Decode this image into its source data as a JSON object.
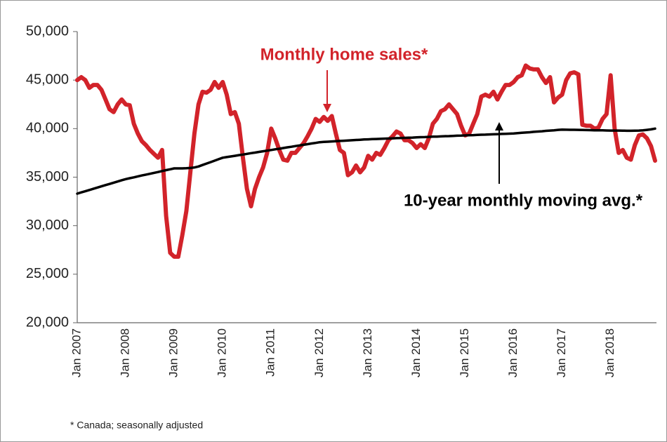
{
  "chart_data": {
    "type": "line",
    "categories": [
      "Jan 2007",
      null,
      null,
      null,
      null,
      null,
      null,
      null,
      null,
      null,
      null,
      null,
      "Jan 2008",
      null,
      null,
      null,
      null,
      null,
      null,
      null,
      null,
      null,
      null,
      null,
      "Jan 2009",
      null,
      null,
      null,
      null,
      null,
      null,
      null,
      null,
      null,
      null,
      null,
      "Jan 2010",
      null,
      null,
      null,
      null,
      null,
      null,
      null,
      null,
      null,
      null,
      null,
      "Jan 2011",
      null,
      null,
      null,
      null,
      null,
      null,
      null,
      null,
      null,
      null,
      null,
      "Jan 2012",
      null,
      null,
      null,
      null,
      null,
      null,
      null,
      null,
      null,
      null,
      null,
      "Jan 2013",
      null,
      null,
      null,
      null,
      null,
      null,
      null,
      null,
      null,
      null,
      null,
      "Jan 2014",
      null,
      null,
      null,
      null,
      null,
      null,
      null,
      null,
      null,
      null,
      null,
      "Jan 2015",
      null,
      null,
      null,
      null,
      null,
      null,
      null,
      null,
      null,
      null,
      null,
      "Jan 2016",
      null,
      null,
      null,
      null,
      null,
      null,
      null,
      null,
      null,
      null,
      null,
      "Jan 2017",
      null,
      null,
      null,
      null,
      null,
      null,
      null,
      null,
      null,
      null,
      null,
      "Jan 2018",
      null,
      null,
      null,
      null,
      null,
      null,
      null,
      null,
      null,
      null,
      null
    ],
    "series": [
      {
        "name": "Monthly home sales*",
        "color": "#d2232a",
        "values": [
          45000,
          45300,
          45000,
          44200,
          44500,
          44500,
          44000,
          43000,
          42000,
          41700,
          42500,
          43000,
          42500,
          42400,
          40500,
          39500,
          38700,
          38300,
          37800,
          37400,
          37000,
          37800,
          31000,
          27200,
          26800,
          26800,
          29000,
          31500,
          35500,
          39500,
          42500,
          43800,
          43700,
          44000,
          44800,
          44200,
          44800,
          43500,
          41500,
          41700,
          40500,
          37000,
          33800,
          32000,
          33800,
          35000,
          36000,
          37500,
          40000,
          39000,
          37800,
          36800,
          36700,
          37500,
          37500,
          38000,
          38500,
          39200,
          40000,
          41000,
          40700,
          41200,
          40800,
          41300,
          39500,
          37800,
          37500,
          35200,
          35500,
          36200,
          35500,
          36000,
          37200,
          36800,
          37500,
          37300,
          38000,
          38800,
          39200,
          39700,
          39500,
          38800,
          38800,
          38500,
          38000,
          38400,
          38000,
          39000,
          40500,
          41000,
          41800,
          42000,
          42500,
          42000,
          41500,
          40300,
          39300,
          39500,
          40500,
          41500,
          43300,
          43500,
          43300,
          43800,
          43000,
          43800,
          44500,
          44500,
          44800,
          45300,
          45500,
          46500,
          46200,
          46100,
          46100,
          45300,
          44700,
          45300,
          42700,
          43200,
          43500,
          45000,
          45700,
          45800,
          45600,
          40400,
          40300,
          40300,
          40000,
          40100,
          41000,
          41500,
          45500,
          40000,
          37500,
          37800,
          37000,
          36800,
          38300,
          39300,
          39400,
          39000,
          38200,
          36700
        ]
      },
      {
        "name": "10-year monthly moving avg.*",
        "color": "#000000",
        "values": [
          33300,
          33430,
          33550,
          33680,
          33800,
          33930,
          34050,
          34180,
          34300,
          34430,
          34550,
          34680,
          34800,
          34890,
          34980,
          35080,
          35170,
          35260,
          35350,
          35440,
          35530,
          35630,
          35720,
          35810,
          35900,
          35900,
          35900,
          35920,
          35950,
          36000,
          36100,
          36250,
          36400,
          36550,
          36700,
          36850,
          37000,
          37070,
          37130,
          37200,
          37270,
          37330,
          37400,
          37470,
          37530,
          37600,
          37670,
          37730,
          37800,
          37870,
          37930,
          38000,
          38070,
          38130,
          38200,
          38270,
          38330,
          38400,
          38470,
          38530,
          38600,
          38630,
          38650,
          38680,
          38700,
          38730,
          38750,
          38780,
          38800,
          38830,
          38850,
          38880,
          38900,
          38920,
          38930,
          38950,
          38970,
          38980,
          39000,
          39020,
          39030,
          39050,
          39070,
          39080,
          39100,
          39120,
          39130,
          39150,
          39170,
          39180,
          39200,
          39220,
          39230,
          39250,
          39270,
          39280,
          39300,
          39320,
          39330,
          39350,
          39370,
          39380,
          39400,
          39420,
          39430,
          39450,
          39470,
          39480,
          39500,
          39530,
          39570,
          39600,
          39630,
          39670,
          39700,
          39730,
          39770,
          39800,
          39830,
          39870,
          39900,
          39890,
          39880,
          39880,
          39870,
          39860,
          39850,
          39840,
          39830,
          39830,
          39820,
          39810,
          39800,
          39800,
          39800,
          39790,
          39780,
          39780,
          39790,
          39800,
          39830,
          39870,
          39920,
          40000
        ]
      }
    ],
    "ylim": [
      20000,
      50000
    ],
    "yticks": [
      {
        "value": 20000,
        "label": "20,000"
      },
      {
        "value": 25000,
        "label": "25,000"
      },
      {
        "value": 30000,
        "label": "30,000"
      },
      {
        "value": 35000,
        "label": "35,000"
      },
      {
        "value": 40000,
        "label": "40,000"
      },
      {
        "value": 45000,
        "label": "45,000"
      },
      {
        "value": 50000,
        "label": "50,000"
      }
    ],
    "grid": false,
    "footnote": "* Canada; seasonally adjusted"
  }
}
